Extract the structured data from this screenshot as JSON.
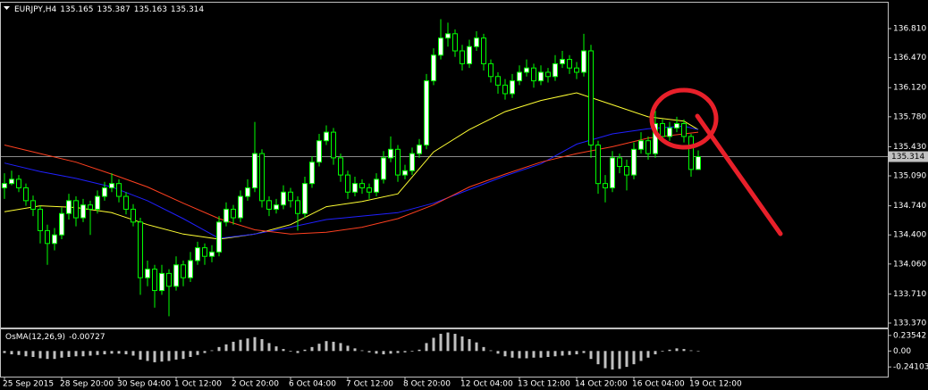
{
  "chart_data": [
    {
      "type": "candlestick",
      "symbol": "EURJPY,H4",
      "categories": [
        "25 Sep 2015",
        null,
        null,
        null,
        null,
        null,
        null,
        null,
        "28 Sep 20:00",
        null,
        null,
        null,
        null,
        null,
        null,
        null,
        "30 Sep 04:00",
        null,
        null,
        null,
        null,
        null,
        null,
        null,
        "1 Oct 12:00",
        null,
        null,
        null,
        null,
        null,
        null,
        null,
        "2 Oct 20:00",
        null,
        null,
        null,
        null,
        null,
        null,
        null,
        "6 Oct 04:00",
        null,
        null,
        null,
        null,
        null,
        null,
        null,
        "7 Oct 12:00",
        null,
        null,
        null,
        null,
        null,
        null,
        null,
        "8 Oct 20:00",
        null,
        null,
        null,
        null,
        null,
        null,
        null,
        "12 Oct 04:00",
        null,
        null,
        null,
        null,
        null,
        null,
        null,
        "13 Oct 12:00",
        null,
        null,
        null,
        null,
        null,
        null,
        null,
        "14 Oct 20:00",
        null,
        null,
        null,
        null,
        null,
        null,
        null,
        "16 Oct 04:00",
        null,
        null,
        null,
        null,
        null,
        null,
        null,
        "19 Oct 12:00",
        null
      ],
      "candles": [
        [
          134.95,
          135.12,
          134.82,
          135.0
        ],
        [
          135.0,
          135.15,
          134.98,
          135.05
        ],
        [
          135.05,
          135.1,
          134.9,
          134.95
        ],
        [
          134.95,
          135.0,
          134.74,
          134.8
        ],
        [
          134.8,
          134.86,
          134.62,
          134.7
        ],
        [
          134.7,
          134.74,
          134.3,
          134.45
        ],
        [
          134.45,
          134.52,
          134.05,
          134.3
        ],
        [
          134.3,
          134.48,
          134.22,
          134.4
        ],
        [
          134.4,
          134.72,
          134.35,
          134.65
        ],
        [
          134.65,
          134.88,
          134.58,
          134.8
        ],
        [
          134.8,
          134.85,
          134.5,
          134.6
        ],
        [
          134.6,
          134.82,
          134.55,
          134.75
        ],
        [
          134.75,
          134.8,
          134.4,
          134.7
        ],
        [
          134.7,
          134.92,
          134.65,
          134.85
        ],
        [
          134.85,
          135.02,
          134.8,
          134.95
        ],
        [
          134.95,
          135.12,
          134.9,
          135.0
        ],
        [
          135.0,
          135.05,
          134.78,
          134.85
        ],
        [
          134.85,
          134.9,
          134.64,
          134.7
        ],
        [
          134.7,
          134.76,
          134.5,
          134.55
        ],
        [
          134.55,
          134.6,
          133.7,
          133.9
        ],
        [
          133.9,
          134.1,
          133.8,
          134.0
        ],
        [
          134.0,
          134.05,
          133.55,
          133.75
        ],
        [
          133.75,
          134.05,
          133.7,
          133.95
        ],
        [
          133.95,
          134.0,
          133.45,
          133.8
        ],
        [
          133.8,
          134.15,
          133.75,
          134.05
        ],
        [
          134.05,
          134.1,
          133.8,
          133.9
        ],
        [
          133.9,
          134.2,
          133.85,
          134.1
        ],
        [
          134.1,
          134.32,
          134.05,
          134.25
        ],
        [
          134.25,
          134.3,
          134.05,
          134.15
        ],
        [
          134.15,
          134.28,
          134.08,
          134.2
        ],
        [
          134.2,
          134.62,
          134.15,
          134.55
        ],
        [
          134.55,
          134.78,
          134.5,
          134.7
        ],
        [
          134.7,
          134.75,
          134.52,
          134.6
        ],
        [
          134.6,
          134.92,
          134.55,
          134.85
        ],
        [
          134.85,
          135.05,
          134.8,
          134.95
        ],
        [
          134.95,
          135.72,
          134.9,
          135.35
        ],
        [
          135.35,
          135.4,
          134.72,
          134.8
        ],
        [
          134.8,
          134.85,
          134.62,
          134.7
        ],
        [
          134.7,
          134.82,
          134.65,
          134.75
        ],
        [
          134.75,
          134.98,
          134.7,
          134.9
        ],
        [
          134.9,
          134.95,
          134.72,
          134.8
        ],
        [
          134.8,
          134.85,
          134.45,
          134.65
        ],
        [
          134.65,
          135.08,
          134.6,
          135.0
        ],
        [
          135.0,
          135.32,
          134.95,
          135.25
        ],
        [
          135.25,
          135.58,
          135.2,
          135.5
        ],
        [
          135.5,
          135.68,
          135.45,
          135.6
        ],
        [
          135.6,
          135.65,
          135.22,
          135.3
        ],
        [
          135.3,
          135.35,
          135.02,
          135.1
        ],
        [
          135.1,
          135.15,
          134.82,
          134.9
        ],
        [
          134.9,
          135.08,
          134.85,
          135.0
        ],
        [
          135.0,
          135.05,
          134.88,
          134.95
        ],
        [
          134.95,
          135.0,
          134.82,
          134.9
        ],
        [
          134.9,
          135.12,
          134.85,
          135.05
        ],
        [
          135.05,
          135.38,
          135.0,
          135.3
        ],
        [
          135.3,
          135.55,
          135.25,
          135.4
        ],
        [
          135.4,
          135.45,
          135.02,
          135.1
        ],
        [
          135.1,
          135.22,
          135.05,
          135.15
        ],
        [
          135.15,
          135.42,
          135.1,
          135.35
        ],
        [
          135.35,
          135.52,
          135.3,
          135.45
        ],
        [
          135.45,
          136.28,
          135.4,
          136.2
        ],
        [
          136.2,
          136.58,
          136.15,
          136.5
        ],
        [
          136.5,
          136.92,
          136.45,
          136.7
        ],
        [
          136.7,
          136.88,
          136.6,
          136.75
        ],
        [
          136.75,
          136.8,
          136.48,
          136.55
        ],
        [
          136.55,
          136.62,
          136.32,
          136.4
        ],
        [
          136.4,
          136.68,
          136.35,
          136.6
        ],
        [
          136.6,
          136.78,
          136.55,
          136.7
        ],
        [
          136.7,
          136.75,
          136.32,
          136.4
        ],
        [
          136.4,
          136.45,
          136.18,
          136.25
        ],
        [
          136.25,
          136.3,
          136.05,
          136.15
        ],
        [
          136.15,
          136.22,
          135.98,
          136.05
        ],
        [
          136.05,
          136.28,
          136.0,
          136.2
        ],
        [
          136.2,
          136.38,
          136.15,
          136.3
        ],
        [
          136.3,
          136.45,
          136.25,
          136.35
        ],
        [
          136.35,
          136.4,
          136.12,
          136.2
        ],
        [
          136.2,
          136.38,
          136.15,
          136.3
        ],
        [
          136.3,
          136.35,
          136.18,
          136.25
        ],
        [
          136.25,
          136.5,
          136.2,
          136.4
        ],
        [
          136.4,
          136.55,
          136.35,
          136.45
        ],
        [
          136.45,
          136.5,
          136.28,
          136.35
        ],
        [
          136.35,
          136.42,
          136.22,
          136.3
        ],
        [
          136.3,
          136.75,
          136.25,
          136.55
        ],
        [
          136.55,
          136.62,
          135.3,
          135.45
        ],
        [
          135.45,
          135.5,
          134.88,
          135.0
        ],
        [
          135.0,
          135.1,
          134.78,
          134.95
        ],
        [
          134.95,
          135.38,
          134.9,
          135.3
        ],
        [
          135.3,
          135.35,
          135.12,
          135.2
        ],
        [
          135.2,
          135.28,
          134.92,
          135.1
        ],
        [
          135.1,
          135.48,
          135.05,
          135.4
        ],
        [
          135.4,
          135.6,
          135.35,
          135.5
        ],
        [
          135.5,
          135.55,
          135.28,
          135.35
        ],
        [
          135.35,
          135.85,
          135.3,
          135.7
        ],
        [
          135.7,
          135.75,
          135.48,
          135.55
        ],
        [
          135.55,
          135.72,
          135.5,
          135.65
        ],
        [
          135.65,
          135.78,
          135.6,
          135.7
        ],
        [
          135.7,
          135.75,
          135.48,
          135.55
        ],
        [
          135.55,
          135.58,
          135.08,
          135.165
        ],
        [
          135.165,
          135.387,
          135.163,
          135.314
        ]
      ],
      "colors": {
        "up": "#ffffff",
        "down": "#000000",
        "wick": "#00ff00"
      },
      "indicators": [
        {
          "color": "#ffff33",
          "x": [
            0,
            5,
            10,
            15,
            20,
            25,
            30,
            35,
            40,
            45,
            50,
            55,
            60,
            65,
            70,
            75,
            80,
            85,
            90,
            95,
            97
          ],
          "values": [
            134.67,
            134.74,
            134.72,
            134.66,
            134.52,
            134.41,
            134.35,
            134.41,
            134.52,
            134.73,
            134.79,
            134.88,
            135.37,
            135.63,
            135.84,
            135.97,
            136.06,
            135.92,
            135.78,
            135.73,
            135.63
          ]
        },
        {
          "color": "#2020ff",
          "x": [
            0,
            5,
            10,
            15,
            20,
            25,
            30,
            35,
            40,
            45,
            50,
            55,
            60,
            65,
            70,
            75,
            80,
            85,
            90,
            95,
            97
          ],
          "values": [
            135.24,
            135.14,
            135.06,
            134.96,
            134.8,
            134.59,
            134.36,
            134.41,
            134.49,
            134.58,
            134.62,
            134.66,
            134.77,
            134.93,
            135.09,
            135.23,
            135.46,
            135.58,
            135.64,
            135.67,
            135.63
          ]
        },
        {
          "color": "#ff4020",
          "x": [
            0,
            5,
            10,
            15,
            20,
            25,
            30,
            35,
            40,
            45,
            50,
            55,
            60,
            65,
            70,
            75,
            80,
            85,
            90,
            95,
            97
          ],
          "values": [
            135.45,
            135.35,
            135.25,
            135.11,
            134.96,
            134.77,
            134.59,
            134.46,
            134.41,
            134.43,
            134.49,
            134.59,
            134.75,
            134.96,
            135.11,
            135.25,
            135.35,
            135.43,
            135.53,
            135.58,
            135.6
          ]
        }
      ],
      "ylim": [
        133.318,
        137.113
      ],
      "yticks": [
        {
          "value": 136.81,
          "label": "136.810"
        },
        {
          "value": 136.47,
          "label": "136.470"
        },
        {
          "value": 136.12,
          "label": "136.120"
        },
        {
          "value": 135.78,
          "label": "135.780"
        },
        {
          "value": 135.43,
          "label": "135.430"
        },
        {
          "value": 135.09,
          "label": "135.090"
        },
        {
          "value": 134.74,
          "label": "134.740"
        },
        {
          "value": 134.4,
          "label": "134.400"
        },
        {
          "value": 134.06,
          "label": "134.060"
        },
        {
          "value": 133.71,
          "label": "133.710"
        },
        {
          "value": 133.37,
          "label": "133.370"
        }
      ]
    },
    {
      "type": "bar",
      "title": "OsMA(12,26,9)",
      "color": "#c0c0c0",
      "values": [
        -0.03,
        -0.05,
        -0.06,
        -0.08,
        -0.09,
        -0.11,
        -0.12,
        -0.12,
        -0.1,
        -0.09,
        -0.08,
        -0.08,
        -0.07,
        -0.06,
        -0.05,
        -0.04,
        -0.04,
        -0.05,
        -0.07,
        -0.13,
        -0.15,
        -0.17,
        -0.16,
        -0.15,
        -0.13,
        -0.12,
        -0.09,
        -0.06,
        -0.03,
        0.01,
        0.06,
        0.1,
        0.14,
        0.17,
        0.19,
        0.21,
        0.18,
        0.12,
        0.07,
        0.03,
        -0.01,
        -0.03,
        0.02,
        0.06,
        0.11,
        0.15,
        0.14,
        0.12,
        0.08,
        0.04,
        0.01,
        -0.02,
        -0.04,
        -0.05,
        -0.04,
        -0.03,
        -0.02,
        -0.01,
        0.02,
        0.12,
        0.2,
        0.26,
        0.28,
        0.26,
        0.22,
        0.18,
        0.13,
        0.06,
        0.01,
        -0.04,
        -0.08,
        -0.1,
        -0.11,
        -0.11,
        -0.1,
        -0.1,
        -0.09,
        -0.08,
        -0.07,
        -0.06,
        -0.05,
        -0.03,
        -0.12,
        -0.2,
        -0.26,
        -0.28,
        -0.27,
        -0.24,
        -0.2,
        -0.15,
        -0.1,
        -0.05,
        -0.01,
        0.02,
        0.04,
        0.03,
        0.01,
        -0.00727
      ],
      "ylim": [
        -0.387,
        0.328
      ],
      "yticks": [
        0.23542,
        {
          "value": 0,
          "label": "0.00"
        },
        -0.24103
      ]
    }
  ]
}
